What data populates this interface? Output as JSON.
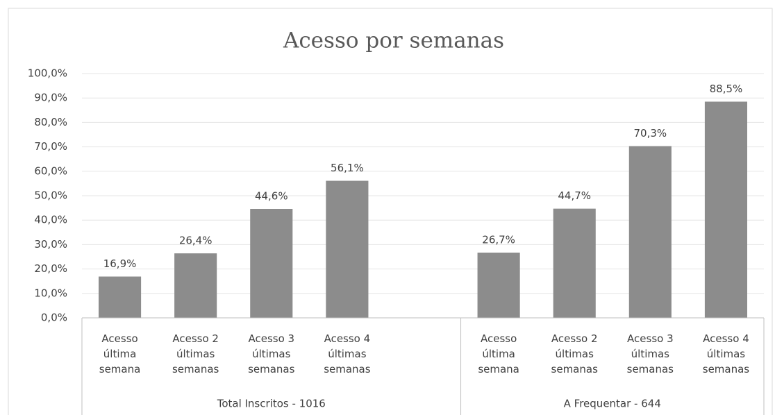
{
  "chart_data": {
    "type": "bar",
    "title": "Acesso por semanas",
    "categories": [
      "Acesso\núltima\nsemana",
      "Acesso 2\núltimas\nsemanas",
      "Acesso 3\núltimas\nsemanas",
      "Acesso 4\núltimas\nsemanas",
      null,
      "Acesso\núltima\nsemana",
      "Acesso 2\núltimas\nsemanas",
      "Acesso 3\núltimas\nsemanas",
      "Acesso 4\núltimas\nsemanas"
    ],
    "values": [
      16.9,
      26.4,
      44.6,
      56.1,
      null,
      26.7,
      44.7,
      70.3,
      88.5
    ],
    "value_labels": [
      "16,9%",
      "26,4%",
      "44,6%",
      "56,1%",
      null,
      "26,7%",
      "44,7%",
      "70,3%",
      "88,5%"
    ],
    "groups": [
      {
        "name": "Total Inscritos - 1016",
        "count": 5
      },
      {
        "name": "A Frequentar - 644",
        "count": 4
      }
    ],
    "color": "#8c8c8c",
    "ylim": [
      0,
      100
    ],
    "yticks": [
      {
        "value": 0,
        "label": "0,0%"
      },
      {
        "value": 10,
        "label": "10,0%"
      },
      {
        "value": 20,
        "label": "20,0%"
      },
      {
        "value": 30,
        "label": "30,0%"
      },
      {
        "value": 40,
        "label": "40,0%"
      },
      {
        "value": 50,
        "label": "50,0%"
      },
      {
        "value": 60,
        "label": "60,0%"
      },
      {
        "value": 70,
        "label": "70,0%"
      },
      {
        "value": 80,
        "label": "80,0%"
      },
      {
        "value": 90,
        "label": "90,0%"
      },
      {
        "value": 100,
        "label": "100,0%"
      }
    ],
    "grid": true
  }
}
